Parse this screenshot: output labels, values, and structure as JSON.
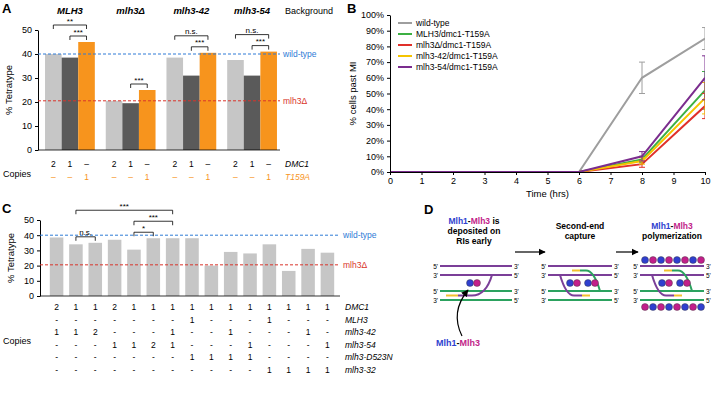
{
  "chart_data": [
    {
      "type": "bar",
      "panel": "A",
      "y_label": "% Tetratype",
      "x_title": "Background",
      "categories": [
        "MLH3",
        "mlh3Δ",
        "mlh3-42",
        "mlh3-54"
      ],
      "series": [
        {
          "color": "#c6c6c6",
          "values": [
            40,
            20.5,
            38.5,
            37.5
          ]
        },
        {
          "color": "#5a5a5a",
          "values": [
            38.5,
            19.5,
            31,
            31
          ]
        },
        {
          "color": "#f7941d",
          "values": [
            45,
            25,
            40.5,
            41
          ]
        }
      ],
      "ylim": [
        0,
        50
      ],
      "yticks": [
        0,
        10,
        20,
        30,
        40,
        50
      ],
      "reference_lines": [
        {
          "value": 40,
          "label": "wild-type",
          "color": "#2e7bd6"
        },
        {
          "value": 20.5,
          "label": "mlh3Δ",
          "color": "#d9342b"
        }
      ],
      "significance": [
        {
          "category": 0,
          "from": 1,
          "to": 2,
          "label": "***"
        },
        {
          "category": 0,
          "from": 0,
          "to": 2,
          "label": "**"
        },
        {
          "category": 1,
          "from": 1,
          "to": 2,
          "label": "***"
        },
        {
          "category": 2,
          "from": 1,
          "to": 2,
          "label": "***"
        },
        {
          "category": 2,
          "from": 0,
          "to": 2,
          "label": "n.s."
        },
        {
          "category": 3,
          "from": 1,
          "to": 2,
          "label": "***"
        },
        {
          "category": 3,
          "from": 0,
          "to": 2,
          "label": "n.s."
        }
      ],
      "copies": {
        "label": "Copies",
        "rows": [
          {
            "name": "DMC1",
            "color": "#000000",
            "cells": [
              "2",
              "1",
              "–",
              "2",
              "1",
              "–",
              "2",
              "1",
              "–",
              "2",
              "1",
              "–"
            ]
          },
          {
            "name": "T159A",
            "color": "#f7941d",
            "cells": [
              "–",
              "–",
              "1",
              "–",
              "–",
              "1",
              "–",
              "–",
              "1",
              "–",
              "–",
              "1"
            ]
          }
        ]
      }
    },
    {
      "type": "line",
      "panel": "B",
      "y_label": "% cells past MI",
      "x_label": "Time (hrs)",
      "x": [
        0,
        2,
        4,
        6,
        8,
        10
      ],
      "xlim": [
        0,
        10
      ],
      "xticks": [
        0,
        1,
        2,
        3,
        4,
        5,
        6,
        7,
        8,
        9,
        10
      ],
      "ylim": [
        0,
        100
      ],
      "yticks": [
        {
          "value": 0,
          "label": "0%"
        },
        {
          "value": 10,
          "label": "10%"
        },
        {
          "value": 20,
          "label": "20%"
        },
        {
          "value": 30,
          "label": "30%"
        },
        {
          "value": 40,
          "label": "40%"
        },
        {
          "value": 50,
          "label": "50%"
        },
        {
          "value": 60,
          "label": "60%"
        },
        {
          "value": 70,
          "label": "70%"
        },
        {
          "value": 80,
          "label": "80%"
        },
        {
          "value": 90,
          "label": "90%"
        },
        {
          "value": 100,
          "label": "100%"
        }
      ],
      "series": [
        {
          "name": "wild-type",
          "color": "#9e9e9e",
          "values": [
            0,
            0,
            0,
            0,
            60,
            85
          ],
          "errors": [
            null,
            null,
            null,
            null,
            10,
            7
          ]
        },
        {
          "name": "MLH3/dmc1-T159A",
          "color": "#3cb043",
          "values": [
            0,
            0,
            0,
            0,
            8,
            52
          ],
          "errors": [
            null,
            null,
            null,
            null,
            2,
            12
          ]
        },
        {
          "name": "mlh3Δ/dmc1-T159A",
          "color": "#e0302a",
          "values": [
            0,
            0,
            0,
            0,
            5,
            42
          ],
          "errors": [
            null,
            null,
            null,
            null,
            2,
            8
          ]
        },
        {
          "name": "mlh3-42/dmc1-T159A",
          "color": "#f5c400",
          "values": [
            0,
            0,
            0,
            0,
            7,
            47
          ],
          "errors": [
            null,
            null,
            null,
            null,
            2,
            10
          ]
        },
        {
          "name": "mlh3-54/dmc1-T159A",
          "color": "#7b2d8e",
          "values": [
            0,
            0,
            0,
            0,
            10,
            60
          ],
          "errors": [
            null,
            null,
            null,
            null,
            3,
            14
          ]
        }
      ],
      "legend": "top-left"
    },
    {
      "type": "bar",
      "panel": "C",
      "y_label": "% Tetratype",
      "values": [
        38.5,
        34,
        35,
        37,
        30.5,
        38,
        38,
        38,
        20,
        29,
        28,
        34,
        16.5,
        31,
        28.5
      ],
      "color": "#c6c6c6",
      "ylim": [
        0,
        50
      ],
      "yticks": [
        0,
        10,
        20,
        30,
        40,
        50
      ],
      "reference_lines": [
        {
          "value": 40,
          "label": "wild-type",
          "color": "#2e7bd6"
        },
        {
          "value": 20.5,
          "label": "mlh3Δ",
          "color": "#d9342b"
        }
      ],
      "significance": [
        {
          "from": 1,
          "to": 2,
          "label": "n.s."
        },
        {
          "from": 4,
          "to": 5,
          "label": "*"
        },
        {
          "from": 4,
          "to": 6,
          "label": "***"
        },
        {
          "from": 1,
          "to": 6,
          "label": "***"
        }
      ],
      "copies": {
        "label": "Copies",
        "rows": [
          {
            "name": "DMC1",
            "color": "#000000",
            "cells": [
              "2",
              "1",
              "1",
              "2",
              "1",
              "1",
              "1",
              "1",
              "1",
              "1",
              "1",
              "1",
              "1",
              "1",
              "1"
            ]
          },
          {
            "name": "MLH3",
            "color": "#000000",
            "cells": [
              "-",
              "-",
              "-",
              "-",
              "-",
              "-",
              "-",
              "1",
              "-",
              "-",
              "-",
              "1",
              "-",
              "-",
              "-"
            ]
          },
          {
            "name": "mlh3-42",
            "color": "#000000",
            "cells": [
              "1",
              "1",
              "2",
              "-",
              "-",
              "-",
              "1",
              "-",
              "-",
              "1",
              "-",
              "-",
              "-",
              "1",
              "-"
            ]
          },
          {
            "name": "mlh3-54",
            "color": "#000000",
            "cells": [
              "-",
              "-",
              "-",
              "1",
              "1",
              "2",
              "1",
              "-",
              "-",
              "-",
              "1",
              "-",
              "-",
              "-",
              "1"
            ]
          },
          {
            "name": "mlh3-D523N",
            "color": "#000000",
            "cells": [
              "-",
              "-",
              "-",
              "-",
              "-",
              "-",
              "-",
              "1",
              "1",
              "1",
              "1",
              "-",
              "-",
              "-",
              "-"
            ]
          },
          {
            "name": "mlh3-32",
            "color": "#000000",
            "cells": [
              "-",
              "-",
              "-",
              "-",
              "-",
              "-",
              "-",
              "-",
              "-",
              "-",
              "-",
              "1",
              "1",
              "1",
              "1"
            ]
          }
        ]
      }
    }
  ],
  "diagram": {
    "panel": "D",
    "steps": [
      {
        "lines": [
          [
            {
              "text": "Mlh1",
              "color": "#2f3fcf"
            },
            {
              "text": "-"
            },
            {
              "text": "Mlh3",
              "color": "#c21f8a"
            },
            {
              "text": " is"
            }
          ],
          [
            {
              "text": "deposited on"
            }
          ],
          [
            {
              "text": "RIs early"
            }
          ]
        ]
      },
      {
        "lines": [
          [
            {
              "text": "Second-end"
            }
          ],
          [
            {
              "text": "capture"
            }
          ]
        ]
      },
      {
        "lines": [
          [
            {
              "text": "Mlh1",
              "color": "#2f3fcf"
            },
            {
              "text": "-"
            },
            {
              "text": "Mlh3",
              "color": "#c21f8a"
            }
          ],
          [
            {
              "text": "polymerization"
            }
          ]
        ]
      }
    ],
    "protein_label": [
      {
        "text": "Mlh1",
        "color": "#2f3fcf"
      },
      {
        "text": "-"
      },
      {
        "text": "Mlh3",
        "color": "#c21f8a"
      }
    ],
    "end_labels": {
      "five": "5'",
      "three": "3'"
    }
  }
}
